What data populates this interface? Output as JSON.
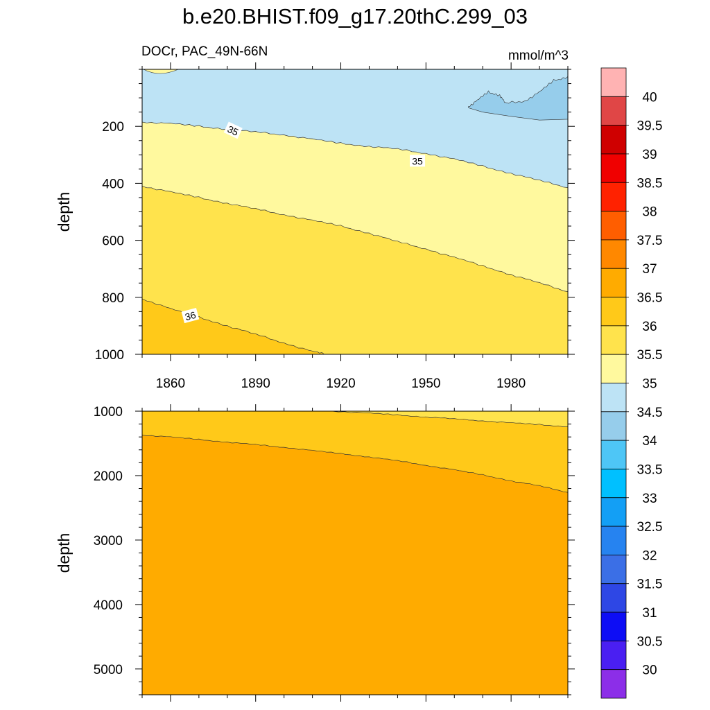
{
  "title": "b.e20.BHIST.f09_g17.20thC.299_03",
  "subtitle_left": "DOCr, PAC_49N-66N",
  "subtitle_right": "mmol/m^3",
  "colors": {
    "c34": "#96cdeb",
    "c345": "#bde3f5",
    "c35": "#fff99e",
    "c355": "#ffe34c",
    "c36": "#ffc919",
    "c365": "#ffab00"
  },
  "chart_data": [
    {
      "type": "heatmap",
      "panel": "upper",
      "ylabel": "depth",
      "xlim": [
        1850,
        2000
      ],
      "ylim": [
        0,
        1000
      ],
      "y_reversed": true,
      "x_ticks": [
        1860,
        1890,
        1920,
        1950,
        1980
      ],
      "y_ticks": [
        200,
        400,
        600,
        800,
        1000
      ],
      "contours": [
        {
          "level": 34.5,
          "x": [
            1965,
            1968,
            1972,
            1976,
            1978,
            1985,
            1990,
            1995,
            2000
          ],
          "y": [
            130,
            110,
            80,
            90,
            120,
            110,
            80,
            40,
            25
          ]
        },
        {
          "level": 35,
          "x": [
            1850,
            1860,
            1870,
            1880,
            1890,
            1900,
            1910,
            1920,
            1930,
            1940,
            1950,
            1960,
            1970,
            1980,
            1990,
            2000
          ],
          "y": [
            185,
            190,
            200,
            210,
            220,
            230,
            245,
            260,
            270,
            280,
            295,
            315,
            340,
            365,
            390,
            415
          ]
        },
        {
          "level": 35.5,
          "x": [
            1850,
            1860,
            1870,
            1880,
            1890,
            1900,
            1910,
            1920,
            1930,
            1940,
            1950,
            1960,
            1970,
            1980,
            1990,
            2000
          ],
          "y": [
            410,
            430,
            450,
            470,
            490,
            510,
            530,
            550,
            575,
            605,
            630,
            660,
            690,
            720,
            750,
            780
          ]
        },
        {
          "level": 36,
          "x": [
            1850,
            1860,
            1870,
            1880,
            1890,
            1900,
            1910,
            1915
          ],
          "y": [
            805,
            840,
            870,
            900,
            930,
            960,
            990,
            1000
          ]
        }
      ],
      "fills": [
        {
          "range": "34-34.5",
          "note": "top-right patch"
        },
        {
          "range": "34.5-35",
          "note": "upper layer"
        },
        {
          "range": "35-35.5"
        },
        {
          "range": "35.5-36"
        },
        {
          "range": "36-36.5",
          "note": "bottom-left wedge"
        }
      ],
      "contour_labels": [
        {
          "text": "35",
          "x": 1882,
          "y": 215
        },
        {
          "text": "35",
          "x": 1947,
          "y": 322
        },
        {
          "text": "36",
          "x": 1867,
          "y": 865
        }
      ]
    },
    {
      "type": "heatmap",
      "panel": "lower",
      "ylabel": "depth",
      "xlim": [
        1850,
        2000
      ],
      "ylim": [
        1000,
        5400
      ],
      "y_reversed": true,
      "y_ticks": [
        1000,
        2000,
        3000,
        4000,
        5000
      ],
      "contours": [
        {
          "level": 36,
          "x": [
            1917,
            1930,
            1940,
            1950,
            1960,
            1970,
            1980,
            1990,
            2000
          ],
          "y": [
            1000,
            1030,
            1060,
            1090,
            1120,
            1150,
            1180,
            1210,
            1240
          ]
        },
        {
          "level": 36.5,
          "x": [
            1850,
            1860,
            1870,
            1880,
            1890,
            1900,
            1910,
            1920,
            1930,
            1940,
            1950,
            1960,
            1970,
            1980,
            1990,
            2000
          ],
          "y": [
            1370,
            1400,
            1440,
            1480,
            1520,
            1560,
            1610,
            1660,
            1710,
            1770,
            1840,
            1910,
            1990,
            2080,
            2160,
            2260
          ]
        }
      ]
    }
  ],
  "colorbar": {
    "labels": [
      "30",
      "30.5",
      "31",
      "31.5",
      "32",
      "32.5",
      "33",
      "33.5",
      "34",
      "34.5",
      "35",
      "35.5",
      "36",
      "36.5",
      "37",
      "37.5",
      "38",
      "38.5",
      "39",
      "39.5",
      "40"
    ],
    "colors": [
      "#8c2ee8",
      "#4a1ff2",
      "#0d0df5",
      "#2e47e5",
      "#3b6fe6",
      "#2683f0",
      "#139ff5",
      "#00c0ff",
      "#4ec6f6",
      "#96cdeb",
      "#bde3f5",
      "#fff99e",
      "#ffe34c",
      "#ffc919",
      "#ffab00",
      "#ff8800",
      "#ff5e00",
      "#ff2200",
      "#f00000",
      "#cf0000",
      "#e04646",
      "#ffb3b3"
    ]
  }
}
